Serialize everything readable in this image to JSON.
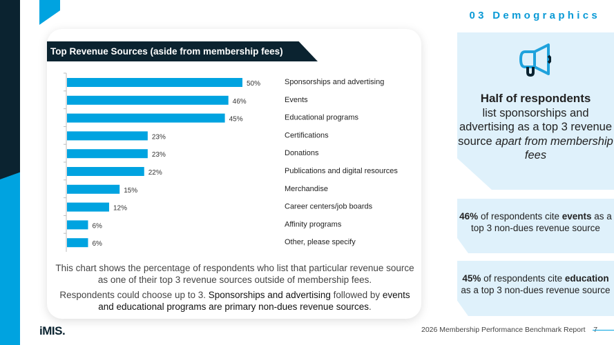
{
  "section_title": "03 Demographics",
  "chart_data": {
    "type": "bar",
    "orientation": "horizontal",
    "title": "Top Revenue Sources (aside from membership fees)",
    "categories": [
      "Sponsorships and advertising",
      "Events",
      "Educational programs",
      "Certifications",
      "Donations",
      "Publications and digital resources",
      "Merchandise",
      "Career centers/job boards",
      "Affinity programs",
      "Other, please specify"
    ],
    "values": [
      50,
      46,
      45,
      23,
      23,
      22,
      15,
      12,
      6,
      6
    ],
    "value_labels": [
      "50%",
      "46%",
      "45%",
      "23%",
      "23%",
      "22%",
      "15%",
      "12%",
      "6%",
      "6%"
    ],
    "unit": "%",
    "xlim": [
      0,
      50
    ],
    "grid": false,
    "bar_color": "#00a3e0"
  },
  "notes": {
    "line1": "This chart shows the percentage of respondents who list that particular revenue source as one of their top 3 revenue sources outside of membership fees.",
    "line2_a": "Respondents could choose up to 3. ",
    "line2_b": "Sponsorships and advertising",
    "line2_c": " followed by ",
    "line2_d": "events and educational programs are primary non-dues revenue sources",
    "line2_e": "."
  },
  "panels": {
    "main": {
      "icon": "megaphone-icon",
      "bold": "Half of respondents",
      "text": "list sponsorships and advertising as a top 3 revenue source ",
      "italic": "apart from membership fees"
    },
    "events": {
      "pct": "46%",
      "t1": " of respondents cite ",
      "bold": "events",
      "t2": " as a top 3 non-dues revenue source"
    },
    "education": {
      "pct": "45%",
      "t1": " of respondents cite ",
      "bold": "education",
      "t2": " as a top 3 non-dues revenue source"
    }
  },
  "footer": {
    "logo": "iMIS.",
    "report": "2026 Membership Performance Benchmark Report",
    "page": "7"
  },
  "colors": {
    "navy": "#0b2330",
    "blue": "#00a3e0",
    "panel": "#dff1fb"
  }
}
